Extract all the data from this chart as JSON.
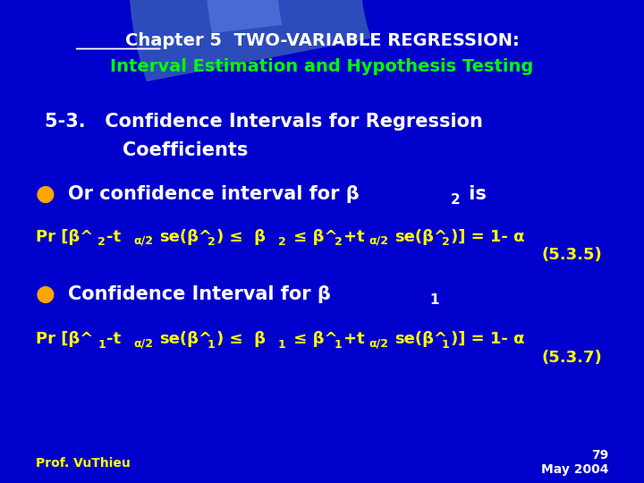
{
  "bg_color": "#0000CC",
  "fig_width": 7.2,
  "fig_height": 5.4,
  "title_line1": "Chapter 5  TWO-VARIABLE REGRESSION:",
  "title_line2": "Interval Estimation and Hypothesis Testing",
  "section_line1": "5-3.   Confidence Intervals for Regression",
  "section_line2": "Coefficients",
  "bullet_char": "●",
  "bullet1_text": "Or confidence interval for β",
  "bullet1_sub": "2",
  "bullet1_end": " is",
  "bullet2_text": "Confidence Interval for β",
  "bullet2_sub": "1",
  "eq1_ref": "(5.3.5)",
  "eq2_ref": "(5.3.7)",
  "footer_left": "Prof. VuThieu",
  "footer_page": "79",
  "footer_date": "May 2004",
  "white": "#FFFFFF",
  "yellow": "#FFFF00",
  "green": "#00FF00",
  "orange": "#FFA500",
  "bg_dark": "#000088"
}
